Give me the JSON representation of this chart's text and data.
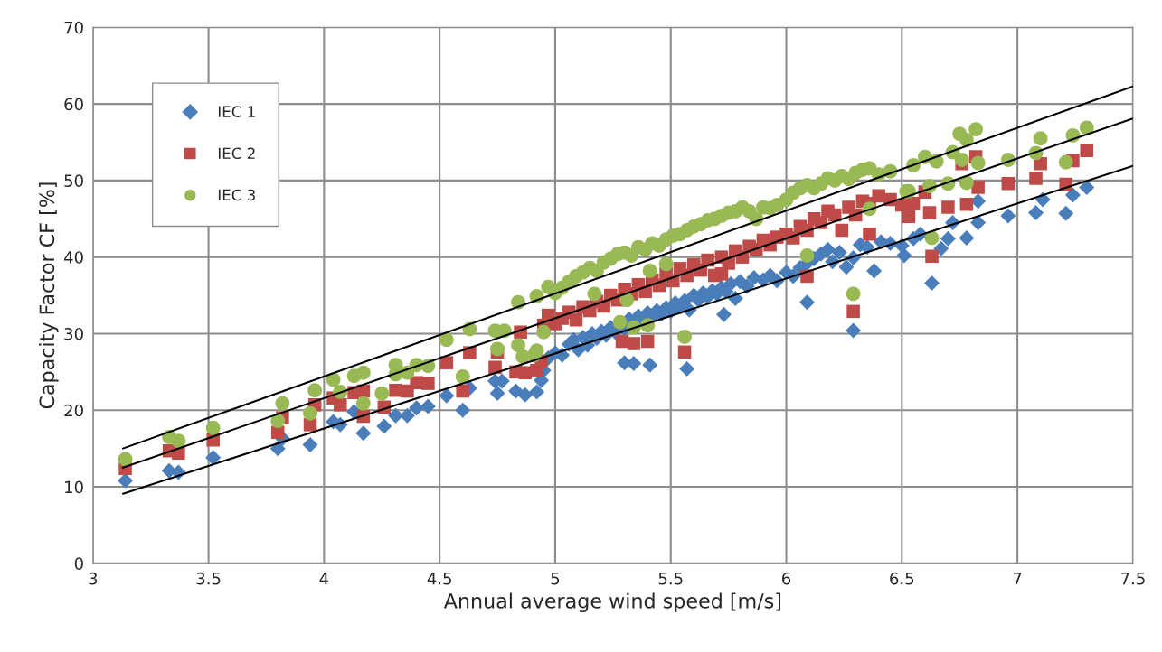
{
  "chart_data": {
    "type": "scatter",
    "xlabel": "Annual average wind speed [m/s]",
    "ylabel": "Capacity Factor CF [%]",
    "xlim": [
      3,
      7.5
    ],
    "ylim": [
      0,
      70
    ],
    "xticks": [
      3,
      3.5,
      4,
      4.5,
      5,
      5.5,
      6,
      6.5,
      7,
      7.5
    ],
    "yticks": [
      0,
      10,
      20,
      30,
      40,
      50,
      60,
      70
    ],
    "grid": true,
    "legend": "top left",
    "series": [
      {
        "name": "IEC 1",
        "marker": "diamond",
        "color": "#4a7ebb",
        "x": [
          3.14,
          3.33,
          3.37,
          3.52,
          3.8,
          3.82,
          3.94,
          4.04,
          4.07,
          4.13,
          4.17,
          4.26,
          4.31,
          4.36,
          4.4,
          4.45,
          4.53,
          4.6,
          4.63,
          4.74,
          4.75,
          4.77,
          4.83,
          4.87,
          4.92,
          4.94,
          4.95,
          4.97,
          5.0,
          5.03,
          5.06,
          5.08,
          5.1,
          5.12,
          5.14,
          5.16,
          5.18,
          5.2,
          5.22,
          5.24,
          5.26,
          5.3,
          5.32,
          5.36,
          5.38,
          5.4,
          5.42,
          5.44,
          5.46,
          5.48,
          5.5,
          5.52,
          5.54,
          5.56,
          5.58,
          5.6,
          5.62,
          5.64,
          5.66,
          5.68,
          5.7,
          5.72,
          5.74,
          5.76,
          5.78,
          5.8,
          5.83,
          5.86,
          5.9,
          5.93,
          5.96,
          6.0,
          6.03,
          6.06,
          6.09,
          6.12,
          6.15,
          6.18,
          6.2,
          6.23,
          6.26,
          6.29,
          6.32,
          6.35,
          6.38,
          6.41,
          6.45,
          6.5,
          6.55,
          6.58,
          5.3,
          5.34,
          5.41,
          5.57,
          5.73,
          6.09,
          6.29,
          6.63,
          6.51,
          6.67,
          6.7,
          6.72,
          6.78,
          6.83,
          6.83,
          6.96,
          7.08,
          7.11,
          7.21,
          7.24,
          7.3
        ],
        "values": [
          10.8,
          12.1,
          11.9,
          13.8,
          15.0,
          16.3,
          15.5,
          18.5,
          18.1,
          19.8,
          17.0,
          17.9,
          19.3,
          19.3,
          20.3,
          20.5,
          21.9,
          20.0,
          22.9,
          23.8,
          22.2,
          23.8,
          22.5,
          22.0,
          22.4,
          23.9,
          25.2,
          26.8,
          27.5,
          27.2,
          28.6,
          29.2,
          27.9,
          29.5,
          28.5,
          30.0,
          29.4,
          30.3,
          29.8,
          30.8,
          30.2,
          30.6,
          31.9,
          32.3,
          31.8,
          32.7,
          32.2,
          33.0,
          32.6,
          33.4,
          32.9,
          34.0,
          33.5,
          34.3,
          33.1,
          35.0,
          34.4,
          35.3,
          34.8,
          35.6,
          35.2,
          36.0,
          35.5,
          36.5,
          34.6,
          36.8,
          36.2,
          37.3,
          37.0,
          37.6,
          36.9,
          38.0,
          37.5,
          38.6,
          39.2,
          39.8,
          40.4,
          41.0,
          39.4,
          40.6,
          38.7,
          39.9,
          41.6,
          41.3,
          38.2,
          42.0,
          41.8,
          41.5,
          42.4,
          43.0,
          26.2,
          26.1,
          25.9,
          25.4,
          32.5,
          34.1,
          30.4,
          36.6,
          40.2,
          41.1,
          42.4,
          44.5,
          42.5,
          44.5,
          47.3,
          45.4,
          45.8,
          47.5,
          45.7,
          48.1,
          49.1
        ]
      },
      {
        "name": "IEC 2",
        "marker": "square",
        "color": "#be4b48",
        "x": [
          3.14,
          3.33,
          3.37,
          3.52,
          3.8,
          3.82,
          3.94,
          3.96,
          4.04,
          4.07,
          4.13,
          4.17,
          4.17,
          4.26,
          4.31,
          4.36,
          4.4,
          4.45,
          4.53,
          4.6,
          4.63,
          4.74,
          4.75,
          4.83,
          4.85,
          4.87,
          4.92,
          4.94,
          4.95,
          4.97,
          5.0,
          5.03,
          5.06,
          5.09,
          5.12,
          5.15,
          5.18,
          5.21,
          5.24,
          5.27,
          5.3,
          5.33,
          5.36,
          5.39,
          5.42,
          5.45,
          5.48,
          5.51,
          5.54,
          5.57,
          5.6,
          5.63,
          5.66,
          5.69,
          5.72,
          5.75,
          5.78,
          5.81,
          5.84,
          5.87,
          5.9,
          5.93,
          5.96,
          6.0,
          6.03,
          6.06,
          6.09,
          6.12,
          6.15,
          6.18,
          6.21,
          6.24,
          6.27,
          6.3,
          6.33,
          6.36,
          6.4,
          6.45,
          6.5,
          6.55,
          6.6,
          5.29,
          5.34,
          5.4,
          5.56,
          5.72,
          6.09,
          6.29,
          6.36,
          6.63,
          6.53,
          6.62,
          6.7,
          6.76,
          6.78,
          6.82,
          6.83,
          6.96,
          7.08,
          7.1,
          7.21,
          7.24,
          7.3
        ],
        "values": [
          12.4,
          14.7,
          14.4,
          16.1,
          17.1,
          19.0,
          18.1,
          20.7,
          21.6,
          20.7,
          22.3,
          22.5,
          19.2,
          20.4,
          22.6,
          22.5,
          23.6,
          23.5,
          26.2,
          22.5,
          27.5,
          25.6,
          27.6,
          25.0,
          30.2,
          24.9,
          25.2,
          26.4,
          31.1,
          32.4,
          31.3,
          32.0,
          32.8,
          31.8,
          33.5,
          33.0,
          34.2,
          33.6,
          35.0,
          34.4,
          35.8,
          35.2,
          36.4,
          35.5,
          37.0,
          36.3,
          37.8,
          36.9,
          38.5,
          37.6,
          39.0,
          38.3,
          39.6,
          37.6,
          40.0,
          39.2,
          40.8,
          40.0,
          41.4,
          41.0,
          42.2,
          41.6,
          42.6,
          43.0,
          42.5,
          44.0,
          43.5,
          45.0,
          44.5,
          46.0,
          45.5,
          43.5,
          46.5,
          45.5,
          47.3,
          47.0,
          48.0,
          47.5,
          46.8,
          47.0,
          48.5,
          29.0,
          28.7,
          29.0,
          27.6,
          37.8,
          37.5,
          32.9,
          43.0,
          40.1,
          45.3,
          45.8,
          46.5,
          52.2,
          46.9,
          53.1,
          49.1,
          49.6,
          50.3,
          52.2,
          49.5,
          52.6,
          53.9
        ]
      },
      {
        "name": "IEC 3",
        "marker": "circle",
        "color": "#98b954",
        "x": [
          3.14,
          3.33,
          3.37,
          3.52,
          3.8,
          3.82,
          3.94,
          3.96,
          4.04,
          4.07,
          4.13,
          4.17,
          4.17,
          4.25,
          4.31,
          4.31,
          4.36,
          4.4,
          4.45,
          4.53,
          4.6,
          4.63,
          4.74,
          4.75,
          4.78,
          4.84,
          4.84,
          4.86,
          4.91,
          4.92,
          4.92,
          4.95,
          4.97,
          5.0,
          5.03,
          5.06,
          5.09,
          5.12,
          5.15,
          5.18,
          5.21,
          5.24,
          5.27,
          5.3,
          5.33,
          5.36,
          5.39,
          5.42,
          5.45,
          5.48,
          5.51,
          5.54,
          5.57,
          5.6,
          5.63,
          5.66,
          5.69,
          5.72,
          5.75,
          5.78,
          5.81,
          5.84,
          5.87,
          5.9,
          5.93,
          5.96,
          6.0,
          6.03,
          6.06,
          6.09,
          6.12,
          6.15,
          6.18,
          6.21,
          6.24,
          6.27,
          6.3,
          6.33,
          6.36,
          6.4,
          6.45,
          6.55,
          5.17,
          5.31,
          5.28,
          5.34,
          5.4,
          5.56,
          5.48,
          5.41,
          6.09,
          6.29,
          6.36,
          6.52,
          6.53,
          6.6,
          6.62,
          6.63,
          6.65,
          6.7,
          6.72,
          6.75,
          6.76,
          6.78,
          6.78,
          6.82,
          6.83,
          6.96,
          7.08,
          7.1,
          7.21,
          7.24,
          7.3
        ],
        "values": [
          13.6,
          16.5,
          16.0,
          17.7,
          18.6,
          20.9,
          19.6,
          22.6,
          24.0,
          22.4,
          24.5,
          24.9,
          20.9,
          22.2,
          25.9,
          24.7,
          24.9,
          25.9,
          25.8,
          29.2,
          24.4,
          30.6,
          30.4,
          28.0,
          30.4,
          34.1,
          28.5,
          27.0,
          27.2,
          27.8,
          34.9,
          30.2,
          36.1,
          35.3,
          36.0,
          36.8,
          37.5,
          38.0,
          38.6,
          38.2,
          39.3,
          39.8,
          40.4,
          40.6,
          40.2,
          41.3,
          41.0,
          41.8,
          41.5,
          42.3,
          42.8,
          43.0,
          43.5,
          44.0,
          44.3,
          44.8,
          45.0,
          45.4,
          45.8,
          46.0,
          46.5,
          46.0,
          45.0,
          46.5,
          46.4,
          46.8,
          47.5,
          48.4,
          49.0,
          49.4,
          49.0,
          49.6,
          50.3,
          50.0,
          50.6,
          50.2,
          51.0,
          51.4,
          51.6,
          50.8,
          51.2,
          52.0,
          35.2,
          34.4,
          31.5,
          30.8,
          31.1,
          29.6,
          39.1,
          38.2,
          40.2,
          35.2,
          46.3,
          48.6,
          48.6,
          53.1,
          49.3,
          42.5,
          52.5,
          49.6,
          53.7,
          56.1,
          52.7,
          55.3,
          49.7,
          56.7,
          52.3,
          52.7,
          53.6,
          55.5,
          52.4,
          55.9,
          56.9
        ]
      },
      {
        "type": "line",
        "color": "#000000",
        "x": [
          3.13,
          7.5
        ],
        "values": [
          15.0,
          62.3
        ]
      },
      {
        "type": "line",
        "color": "#000000",
        "x": [
          3.13,
          7.5
        ],
        "values": [
          12.5,
          58.1
        ]
      },
      {
        "type": "line",
        "color": "#000000",
        "x": [
          3.13,
          7.5
        ],
        "values": [
          9.1,
          51.9
        ]
      }
    ]
  }
}
